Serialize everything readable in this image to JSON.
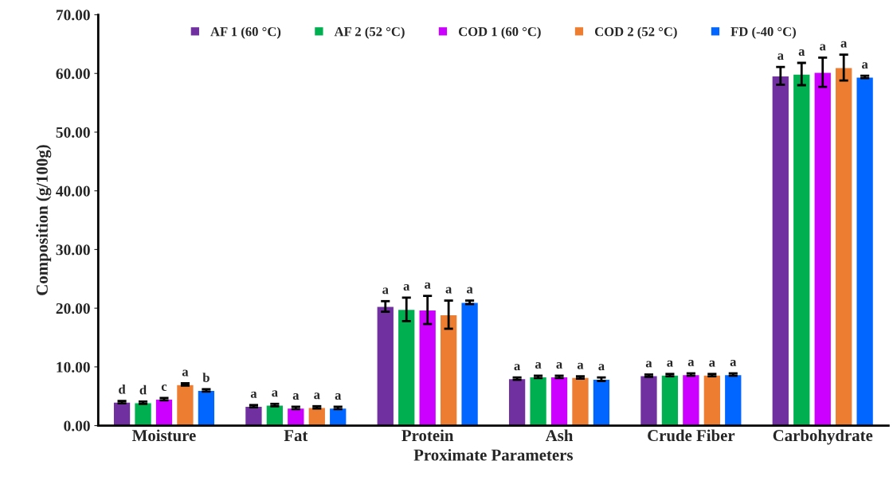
{
  "chart_data": {
    "type": "bar",
    "xlabel": "Proximate Parameters",
    "ylabel": "Composition (g/100g)",
    "categories": [
      "Moisture",
      "Fat",
      "Protein",
      "Ash",
      "Crude Fiber",
      "Carbohydrate"
    ],
    "series": [
      {
        "name": "AF 1 (60 °C)",
        "color": "#7030a0",
        "values": [
          4.0,
          3.3,
          20.3,
          8.0,
          8.5,
          59.6
        ],
        "errors": [
          0.2,
          0.2,
          0.9,
          0.2,
          0.2,
          1.5
        ],
        "value_labels": [
          "d",
          "a",
          "a",
          "a",
          "a",
          "a"
        ]
      },
      {
        "name": "AF 2 (52 °C)",
        "color": "#00b050",
        "values": [
          3.9,
          3.5,
          19.8,
          8.3,
          8.6,
          59.9
        ],
        "errors": [
          0.2,
          0.2,
          2.0,
          0.2,
          0.2,
          1.9
        ],
        "value_labels": [
          "d",
          "a",
          "a",
          "a",
          "a",
          "a"
        ]
      },
      {
        "name": "COD 1 (60 °C)",
        "color": "#cc00ff",
        "values": [
          4.5,
          3.0,
          19.7,
          8.3,
          8.7,
          60.2
        ],
        "errors": [
          0.2,
          0.2,
          2.4,
          0.2,
          0.2,
          2.5
        ],
        "value_labels": [
          "c",
          "a",
          "a",
          "a",
          "a",
          "a"
        ]
      },
      {
        "name": "COD 2 (52 °C)",
        "color": "#ed7d31",
        "values": [
          7.0,
          3.1,
          18.9,
          8.2,
          8.6,
          61.0
        ],
        "errors": [
          0.2,
          0.2,
          2.4,
          0.2,
          0.2,
          2.2
        ],
        "value_labels": [
          "a",
          "a",
          "a",
          "a",
          "a",
          "a"
        ]
      },
      {
        "name": "FD (-40 °C)",
        "color": "#0066ff",
        "values": [
          6.0,
          3.0,
          21.0,
          7.9,
          8.7,
          59.4
        ],
        "errors": [
          0.2,
          0.2,
          0.3,
          0.3,
          0.2,
          0.2
        ],
        "value_labels": [
          "b",
          "a",
          "a",
          "a",
          "a",
          "a"
        ]
      }
    ],
    "ylim": [
      0,
      70
    ],
    "yticks": [
      {
        "value": 0,
        "label": "0.00"
      },
      {
        "value": 10,
        "label": "10.00"
      },
      {
        "value": 20,
        "label": "20.00"
      },
      {
        "value": 30,
        "label": "30.00"
      },
      {
        "value": 40,
        "label": "40.00"
      },
      {
        "value": 50,
        "label": "50.00"
      },
      {
        "value": 60,
        "label": "60.00"
      },
      {
        "value": 70,
        "label": "70.00"
      }
    ],
    "legend": "top",
    "grid": false
  }
}
